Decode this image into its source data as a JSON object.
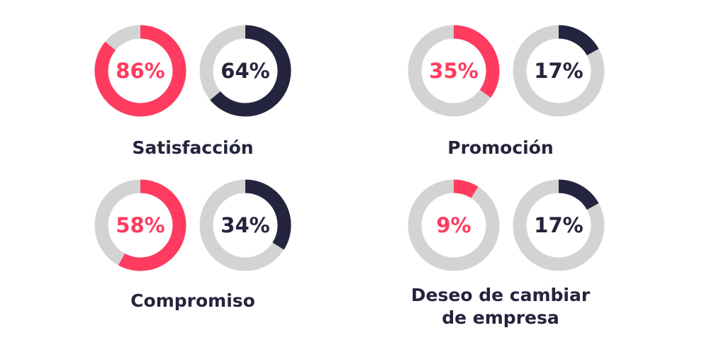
{
  "chart_data": [
    {
      "type": "donut",
      "title": [
        "Satisfacción"
      ],
      "values": [
        86,
        64
      ],
      "value_labels": [
        "86%",
        "64%"
      ],
      "colors": [
        "#ff3b5f",
        "#24243e"
      ],
      "track_color": "#d3d3d3"
    },
    {
      "type": "donut",
      "title": [
        "Promoción"
      ],
      "values": [
        35,
        17
      ],
      "value_labels": [
        "35%",
        "17%"
      ],
      "colors": [
        "#ff3b5f",
        "#24243e"
      ],
      "track_color": "#d3d3d3"
    },
    {
      "type": "donut",
      "title": [
        "Compromiso"
      ],
      "values": [
        58,
        34
      ],
      "value_labels": [
        "58%",
        "34%"
      ],
      "colors": [
        "#ff3b5f",
        "#24243e"
      ],
      "track_color": "#d3d3d3"
    },
    {
      "type": "donut",
      "title": [
        "Deseo de cambiar",
        "de empresa"
      ],
      "values": [
        9,
        17
      ],
      "value_labels": [
        "9%",
        "17%"
      ],
      "colors": [
        "#ff3b5f",
        "#24243e"
      ],
      "track_color": "#d3d3d3"
    }
  ]
}
